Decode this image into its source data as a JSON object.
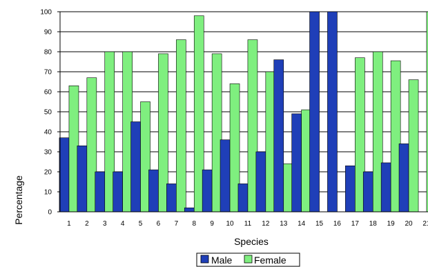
{
  "chart_data": {
    "type": "bar",
    "xlabel": "Species",
    "ylabel": "Percentage",
    "ylim": [
      0,
      100
    ],
    "ytick_step": 10,
    "grid": true,
    "legend_position": "bottom",
    "categories": [
      "1",
      "2",
      "3",
      "4",
      "5",
      "6",
      "7",
      "8",
      "9",
      "10",
      "11",
      "12",
      "13",
      "14",
      "15",
      "16",
      "17",
      "18",
      "19",
      "20",
      "21"
    ],
    "series": [
      {
        "name": "Male",
        "color": "#1f3fb8",
        "values": [
          37,
          33,
          20,
          20,
          45,
          21,
          14,
          2,
          21,
          36,
          14,
          30,
          76,
          49,
          100,
          100,
          23,
          20,
          24.5,
          34,
          0
        ]
      },
      {
        "name": "Female",
        "color": "#7fef7f",
        "values": [
          63,
          67,
          80,
          80,
          55,
          79,
          86,
          98,
          79,
          64,
          86,
          70,
          24,
          51,
          0,
          0,
          77,
          80,
          75.5,
          66,
          100
        ]
      }
    ]
  }
}
